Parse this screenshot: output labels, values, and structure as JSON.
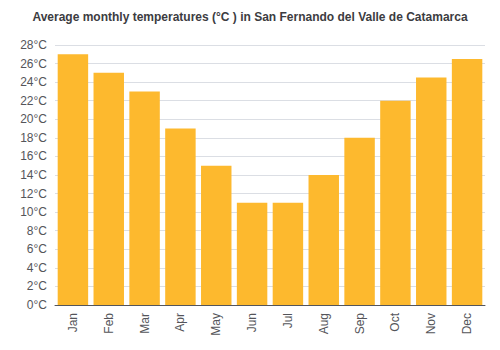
{
  "chart_data": {
    "type": "bar",
    "title": "Average monthly temperatures (°C ) in San Fernando del Valle de Catamarca",
    "categories": [
      "Jan",
      "Feb",
      "Mar",
      "Apr",
      "May",
      "Jun",
      "Jul",
      "Aug",
      "Sep",
      "Oct",
      "Nov",
      "Dec"
    ],
    "values": [
      27,
      25,
      23,
      19,
      15,
      11,
      11,
      14,
      18,
      22,
      24.5,
      26.5
    ],
    "color": "#FDB92E",
    "ylim": [
      0,
      28
    ],
    "yticks": [
      {
        "value": 0,
        "label": "0°C"
      },
      {
        "value": 2,
        "label": "2°C"
      },
      {
        "value": 4,
        "label": "4°C"
      },
      {
        "value": 6,
        "label": "6°C"
      },
      {
        "value": 8,
        "label": "8°C"
      },
      {
        "value": 10,
        "label": "10°C"
      },
      {
        "value": 12,
        "label": "12°C"
      },
      {
        "value": 14,
        "label": "14°C"
      },
      {
        "value": 16,
        "label": "16°C"
      },
      {
        "value": 18,
        "label": "18°C"
      },
      {
        "value": 20,
        "label": "20°C"
      },
      {
        "value": 22,
        "label": "22°C"
      },
      {
        "value": 24,
        "label": "24°C"
      },
      {
        "value": 26,
        "label": "26°C"
      },
      {
        "value": 28,
        "label": "28°C"
      }
    ],
    "grid": true
  }
}
